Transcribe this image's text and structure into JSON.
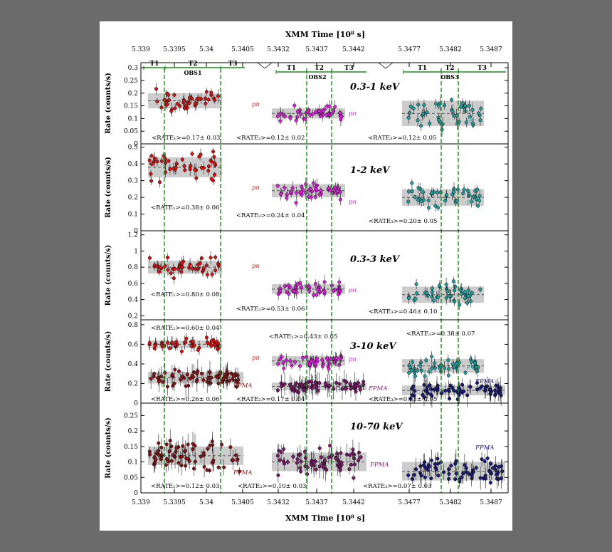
{
  "chart_data": {
    "type": "scatter",
    "top_axis_title": "XMM Time [10⁸ s]",
    "bottom_axis_title": "XMM Time [10⁸ s]",
    "y_axis_label": "Rate (counts/s)",
    "obs_labels": [
      "OBS1",
      "OBS2",
      "OBS3"
    ],
    "segment_labels": [
      "T1",
      "T2",
      "T3"
    ],
    "time_ticks": [
      [
        "5.339",
        "5.3395",
        "5.34",
        "5.3405"
      ],
      [
        "5.3432",
        "5.3437",
        "5.3442"
      ],
      [
        "5.3477",
        "5.3482",
        "5.3487"
      ]
    ],
    "colors": {
      "pn_obs1": "#dd1111",
      "pn_obs2": "#e020e0",
      "pn_obs3": "#20a0a0",
      "fpma_obs1": "#8b1515",
      "fpma_obs2": "#7a1a6a",
      "fpma_obs3": "#1a1a7a",
      "green_lines": "#1d8a1d",
      "band": "#cccccc"
    },
    "panels": [
      {
        "band": "0.3-1 keV",
        "ylim": [
          0,
          0.32
        ],
        "yticks": [
          "0",
          "0.05",
          "0.1",
          "0.15",
          "0.2",
          "0.25",
          "0.3"
        ],
        "series": [
          {
            "instrument": "pn",
            "obs": 1,
            "mean": 0.17,
            "err": 0.03,
            "label": "<RATE₁>=0.17± 0.03"
          },
          {
            "instrument": "pn",
            "obs": 2,
            "mean": 0.12,
            "err": 0.02,
            "label": "<RATE₂>=0.12± 0.02"
          },
          {
            "instrument": "pn",
            "obs": 3,
            "mean": 0.12,
            "err": 0.05,
            "label": "<RATE₃>=0.12± 0.05"
          }
        ]
      },
      {
        "band": "1-2 keV",
        "ylim": [
          0,
          0.52
        ],
        "yticks": [
          "0",
          "0.1",
          "0.2",
          "0.3",
          "0.4",
          "0.5"
        ],
        "series": [
          {
            "instrument": "pn",
            "obs": 1,
            "mean": 0.38,
            "err": 0.06,
            "label": "<RATE₁>=0.38± 0.06"
          },
          {
            "instrument": "pn",
            "obs": 2,
            "mean": 0.24,
            "err": 0.04,
            "label": "<RATE₂>=0.24± 0.04"
          },
          {
            "instrument": "pn",
            "obs": 3,
            "mean": 0.2,
            "err": 0.05,
            "label": "<RATE₃>=0.20± 0.05"
          }
        ]
      },
      {
        "band": "0.3-3 keV",
        "ylim": [
          0.15,
          1.25
        ],
        "yticks": [
          "0.2",
          "0.4",
          "0.6",
          "0.8",
          "1",
          "1.2"
        ],
        "series": [
          {
            "instrument": "pn",
            "obs": 1,
            "mean": 0.8,
            "err": 0.08,
            "label": "<RATE₁>=0.80± 0.08"
          },
          {
            "instrument": "pn",
            "obs": 2,
            "mean": 0.53,
            "err": 0.06,
            "label": "<RATE₂>=0.53± 0.06"
          },
          {
            "instrument": "pn",
            "obs": 3,
            "mean": 0.46,
            "err": 0.1,
            "label": "<RATE₃>=0.46± 0.10"
          }
        ]
      },
      {
        "band": "3-10 keV",
        "ylim": [
          0,
          0.85
        ],
        "yticks": [
          "0",
          "0.2",
          "0.4",
          "0.6",
          "0.8"
        ],
        "series": [
          {
            "instrument": "pn",
            "obs": 1,
            "mean": 0.6,
            "err": 0.04,
            "label": "<RATE₁>=0.60± 0.04"
          },
          {
            "instrument": "pn",
            "obs": 2,
            "mean": 0.43,
            "err": 0.05,
            "label": "<RATE₂>=0.43± 0.05"
          },
          {
            "instrument": "pn",
            "obs": 3,
            "mean": 0.38,
            "err": 0.07,
            "label": "<RATE₃>=0.38± 0.07"
          },
          {
            "instrument": "FPMA",
            "obs": 1,
            "mean": 0.26,
            "err": 0.06,
            "label": "<RATE₁>=0.26± 0.06"
          },
          {
            "instrument": "FPMA",
            "obs": 2,
            "mean": 0.17,
            "err": 0.04,
            "label": "<RATE₂>=0.17± 0.04"
          },
          {
            "instrument": "FPMA",
            "obs": 3,
            "mean": 0.13,
            "err": 0.05,
            "label": "<RATE₃>=0.13± 0.05"
          }
        ]
      },
      {
        "band": "10-70 keV",
        "ylim": [
          0,
          0.29
        ],
        "yticks": [
          "0",
          "0.05",
          "0.1",
          "0.15",
          "0.2",
          "0.25"
        ],
        "series": [
          {
            "instrument": "FPMA",
            "obs": 1,
            "mean": 0.12,
            "err": 0.03,
            "label": "<RATE₁>=0.12± 0.03"
          },
          {
            "instrument": "FPMA",
            "obs": 2,
            "mean": 0.1,
            "err": 0.03,
            "label": "<RATE₂>=0.10± 0.03"
          },
          {
            "instrument": "FPMA",
            "obs": 3,
            "mean": 0.07,
            "err": 0.03,
            "label": "<RATE₃>=0.07± 0.03"
          }
        ]
      }
    ]
  }
}
